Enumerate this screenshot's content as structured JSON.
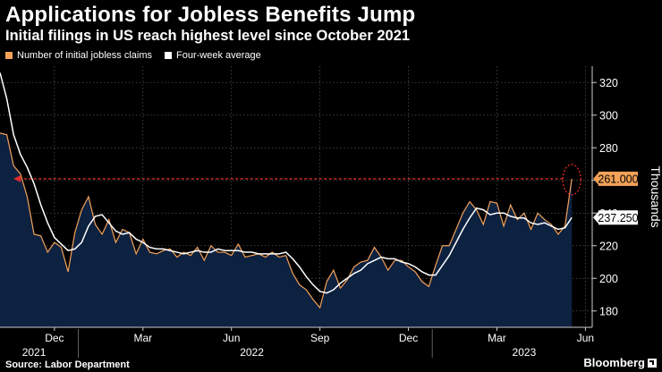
{
  "title": "Applications for Jobless Benefits Jump",
  "subtitle": "Initial filings in US reach highest level since October 2021",
  "footer": {
    "source": "Source: Labor Department",
    "brand": "Bloomberg",
    "brand_icon": "external-link-icon"
  },
  "colors": {
    "claims": "#f4a259",
    "average": "#ffffff",
    "area": "#0d2140",
    "reference": "#e02b2b"
  },
  "chart_data": {
    "type": "area",
    "title": "Applications for Jobless Benefits Jump",
    "subtitle": "Initial filings in US reach highest level since October 2021",
    "ylabel": "Thousands",
    "ylim": [
      170,
      330
    ],
    "yticks": [
      180,
      200,
      220,
      240,
      260,
      280,
      300,
      320
    ],
    "xlim": [
      0,
      87
    ],
    "xticks": [
      {
        "label": "Dec",
        "x": 8
      },
      {
        "label": "Mar",
        "x": 21
      },
      {
        "label": "Jun",
        "x": 34
      },
      {
        "label": "Sep",
        "x": 47
      },
      {
        "label": "Dec",
        "x": 60
      },
      {
        "label": "Mar",
        "x": 73
      },
      {
        "label": "Jun",
        "x": 86
      }
    ],
    "year_labels": [
      {
        "label": "2021",
        "x": 5
      },
      {
        "label": "2022",
        "x": 37
      },
      {
        "label": "2023",
        "x": 77
      }
    ],
    "legend": [
      "Number of initial jobless claims",
      "Four-week average"
    ],
    "series": [
      {
        "name": "Number of initial jobless claims",
        "values": [
          289,
          288,
          269,
          264,
          250,
          227,
          226,
          216,
          222,
          219,
          204,
          228,
          242,
          250,
          233,
          227,
          236,
          222,
          230,
          228,
          215,
          224,
          216,
          215,
          217,
          218,
          213,
          216,
          214,
          219,
          211,
          220,
          216,
          216,
          214,
          221,
          213,
          214,
          215,
          213,
          216,
          213,
          214,
          203,
          196,
          193,
          187,
          182,
          198,
          205,
          194,
          199,
          207,
          210,
          211,
          219,
          213,
          205,
          211,
          211,
          207,
          204,
          198,
          195,
          208,
          220,
          220,
          230,
          240,
          247,
          242,
          233,
          247,
          246,
          232,
          245,
          236,
          240,
          230,
          240,
          236,
          233,
          227,
          232,
          261
        ]
      },
      {
        "name": "Four-week average",
        "values": [
          326,
          310,
          288,
          276,
          268,
          258,
          245,
          234,
          225,
          221,
          217,
          218,
          222,
          232,
          238,
          239,
          234,
          229,
          227,
          228,
          224,
          222,
          219,
          218,
          218,
          217,
          216,
          215,
          216,
          217,
          216,
          216,
          218,
          217,
          217,
          217,
          216,
          216,
          215,
          215,
          215,
          215,
          216,
          212,
          207,
          201,
          196,
          192,
          191,
          193,
          197,
          200,
          203,
          205,
          209,
          211,
          213,
          212,
          212,
          210,
          209,
          207,
          204,
          202,
          202,
          208,
          214,
          222,
          230,
          237,
          243,
          242,
          239,
          240,
          240,
          238,
          237,
          237,
          234,
          233,
          234,
          232,
          230,
          231,
          237.25
        ]
      }
    ],
    "annotations": [
      {
        "label": "261.000",
        "value": 261,
        "series": "Number of initial jobless claims"
      },
      {
        "label": "237.250",
        "value": 237.25,
        "series": "Four-week average"
      }
    ],
    "reference_line": {
      "value": 261,
      "from_x": 2,
      "to_x": 84,
      "style": "dotted-arrow"
    }
  }
}
